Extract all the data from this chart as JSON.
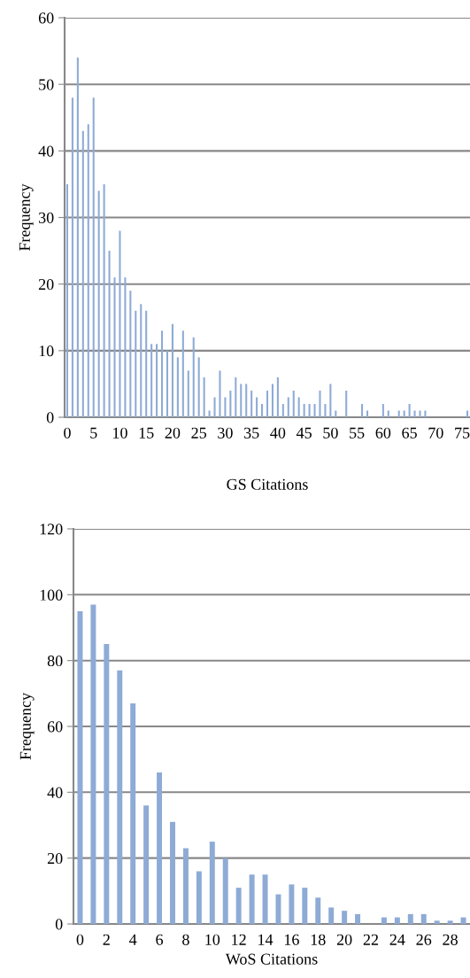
{
  "chart_data": [
    {
      "type": "bar",
      "xlabel": "GS Citations",
      "ylabel": "Frequency",
      "categories": [
        "0",
        null,
        null,
        null,
        null,
        "5",
        null,
        null,
        null,
        null,
        "10",
        null,
        null,
        null,
        null,
        "15",
        null,
        null,
        null,
        null,
        "20",
        null,
        null,
        null,
        null,
        "25",
        null,
        null,
        null,
        null,
        "30",
        null,
        null,
        null,
        null,
        "35",
        null,
        null,
        null,
        null,
        "40",
        null,
        null,
        null,
        null,
        "45",
        null,
        null,
        null,
        null,
        "50",
        null,
        null,
        null,
        null,
        "55",
        null,
        null,
        null,
        null,
        "60",
        null,
        null,
        null,
        null,
        "65",
        null,
        null,
        null,
        null,
        "70",
        null,
        null,
        null,
        null,
        "75",
        null
      ],
      "values": [
        35,
        48,
        54,
        43,
        44,
        48,
        34,
        35,
        25,
        21,
        28,
        21,
        19,
        16,
        17,
        16,
        11,
        11,
        13,
        10,
        14,
        9,
        13,
        7,
        12,
        9,
        6,
        1,
        3,
        7,
        3,
        4,
        6,
        5,
        5,
        4,
        3,
        2,
        4,
        5,
        6,
        2,
        3,
        4,
        3,
        2,
        2,
        2,
        4,
        2,
        5,
        1,
        0,
        4,
        0,
        0,
        2,
        1,
        0,
        0,
        2,
        1,
        0,
        1,
        1,
        2,
        1,
        1,
        1,
        0,
        0,
        0,
        0,
        0,
        0,
        0,
        1
      ],
      "color": "#8eabd6",
      "ylim": [
        0,
        60
      ],
      "yticks": [
        0,
        10,
        20,
        30,
        40,
        50,
        60
      ],
      "grid": "y"
    },
    {
      "type": "bar",
      "xlabel": "WoS Citations",
      "ylabel": "Frequency",
      "categories": [
        "0",
        null,
        "2",
        null,
        "4",
        null,
        "6",
        null,
        "8",
        null,
        "10",
        null,
        "12",
        null,
        "14",
        null,
        "16",
        null,
        "18",
        null,
        "20",
        null,
        "22",
        null,
        "24",
        null,
        "26",
        null,
        "28",
        null
      ],
      "values": [
        95,
        97,
        85,
        77,
        67,
        36,
        46,
        31,
        23,
        16,
        25,
        20,
        11,
        15,
        15,
        9,
        12,
        11,
        8,
        5,
        4,
        3,
        0,
        2,
        2,
        3,
        3,
        1,
        1,
        2
      ],
      "color": "#8eabd6",
      "ylim": [
        0,
        120
      ],
      "yticks": [
        0,
        20,
        40,
        60,
        80,
        100,
        120
      ],
      "grid": "y"
    }
  ]
}
